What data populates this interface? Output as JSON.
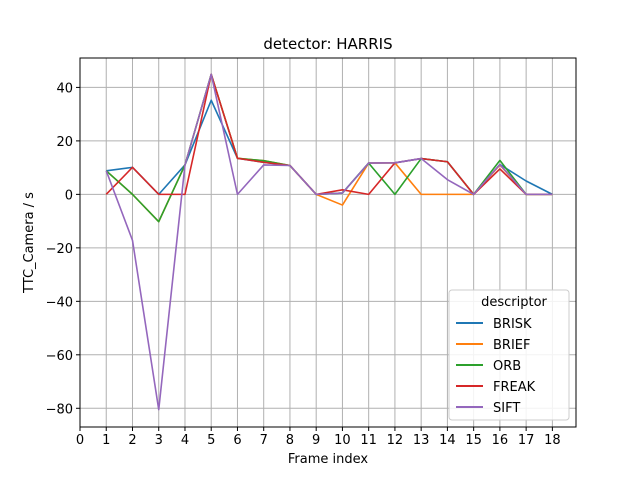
{
  "chart_data": {
    "type": "line",
    "title": "detector: HARRIS",
    "xlabel": "Frame index",
    "ylabel": "TTC_Camera / s",
    "x": [
      1,
      2,
      3,
      4,
      5,
      6,
      7,
      8,
      9,
      10,
      11,
      12,
      13,
      14,
      15,
      16,
      17,
      18
    ],
    "xticks": [
      0,
      1,
      2,
      3,
      4,
      5,
      6,
      7,
      8,
      9,
      10,
      11,
      12,
      13,
      14,
      15,
      16,
      17,
      18
    ],
    "yticks": [
      -80,
      -60,
      -40,
      -20,
      0,
      20,
      40
    ],
    "xlim": [
      0,
      18.9
    ],
    "ylim": [
      -87,
      51
    ],
    "grid": true,
    "legend": {
      "title": "descriptor",
      "placement": "lower-right"
    },
    "series": [
      {
        "name": "BRISK",
        "color": "#1f77b4",
        "values": [
          8.8,
          10.1,
          0,
          11,
          35.2,
          13.5,
          12,
          10.8,
          0,
          0.5,
          11.7,
          11.8,
          13.4,
          12.2,
          0,
          11.2,
          5,
          0
        ]
      },
      {
        "name": "BRIEF",
        "color": "#ff7f0e",
        "values": [
          8.8,
          0,
          -10.2,
          11,
          44.9,
          13.5,
          12.6,
          10.8,
          0,
          -4,
          11.7,
          11.8,
          0,
          0,
          0,
          11,
          0,
          0
        ]
      },
      {
        "name": "ORB",
        "color": "#2ca02c",
        "values": [
          8.8,
          0,
          -10.2,
          11,
          44.9,
          13.5,
          12.6,
          10.8,
          0,
          0.5,
          11.7,
          0,
          13.4,
          12.2,
          0,
          12.7,
          0,
          0
        ]
      },
      {
        "name": "FREAK",
        "color": "#d62728",
        "values": [
          0,
          10.1,
          0,
          0,
          44.9,
          13.5,
          12,
          10.8,
          0,
          1.7,
          0,
          11.8,
          13.4,
          12.2,
          0,
          9.5,
          0,
          0
        ]
      },
      {
        "name": "SIFT",
        "color": "#9467bd",
        "values": [
          8.8,
          -17.2,
          -80.5,
          11,
          44.9,
          0,
          11,
          10.8,
          0,
          0.5,
          11.7,
          11.8,
          13.4,
          5.5,
          0,
          11.2,
          0,
          0
        ]
      }
    ]
  }
}
